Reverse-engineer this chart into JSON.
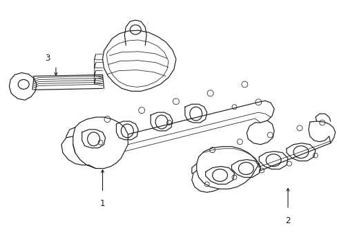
{
  "bg_color": "#ffffff",
  "line_color": "#1a1a1a",
  "lw": 0.85,
  "lt": 0.55,
  "label_fontsize": 8.5,
  "fig_width": 4.89,
  "fig_height": 3.6,
  "dpi": 100
}
